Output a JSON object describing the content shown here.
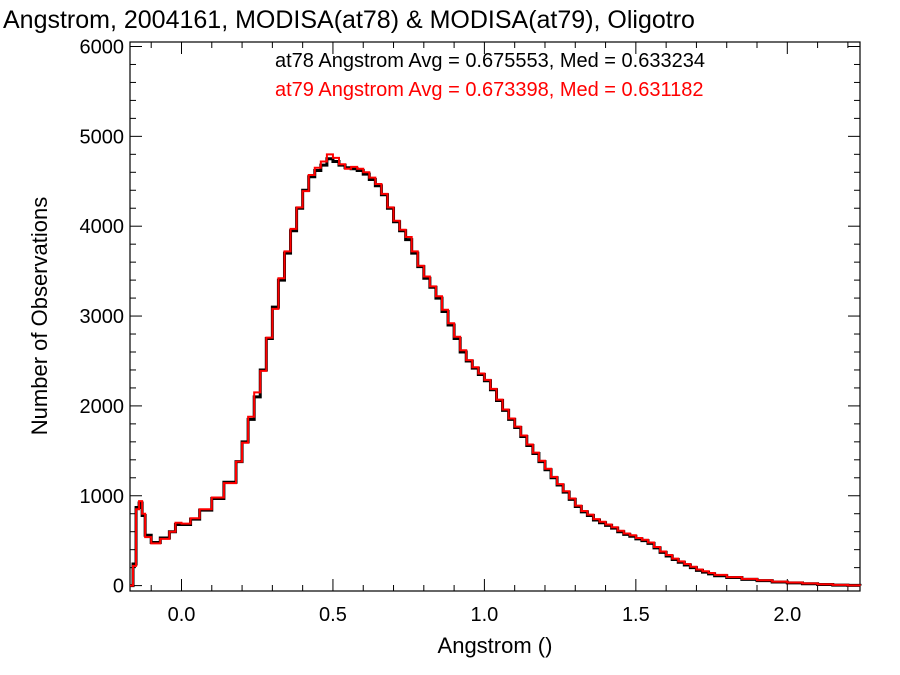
{
  "chart_data": {
    "type": "line",
    "title": "Angstrom, 2004161, MODISA(at78) & MODISA(at79), Oligotro",
    "xlabel": "Angstrom ()",
    "ylabel": "Number of Observations",
    "xlim": [
      -0.17,
      2.24
    ],
    "ylim": [
      -60,
      6050
    ],
    "x_ticks": [
      0.0,
      0.5,
      1.0,
      1.5,
      2.0
    ],
    "x_tick_labels": [
      "0.0",
      "0.5",
      "1.0",
      "1.5",
      "2.0"
    ],
    "y_ticks": [
      0,
      1000,
      2000,
      3000,
      4000,
      5000,
      6000
    ],
    "y_tick_labels": [
      "0",
      "1000",
      "2000",
      "3000",
      "4000",
      "5000",
      "6000"
    ],
    "grid": false,
    "legend_position": "top-right",
    "annotations": [
      {
        "text": "at78 Angstrom Avg = 0.675553, Med = 0.633234",
        "color": "#000000"
      },
      {
        "text": "at79 Angstrom Avg = 0.673398, Med = 0.631182",
        "color": "#ff0000"
      }
    ],
    "series": [
      {
        "color": "#000000",
        "points": [
          [
            -0.17,
            0
          ],
          [
            -0.16,
            240
          ],
          [
            -0.15,
            870
          ],
          [
            -0.14,
            920
          ],
          [
            -0.13,
            780
          ],
          [
            -0.12,
            560
          ],
          [
            -0.1,
            480
          ],
          [
            -0.07,
            530
          ],
          [
            -0.04,
            600
          ],
          [
            -0.02,
            680
          ],
          [
            0.0,
            680
          ],
          [
            0.03,
            740
          ],
          [
            0.06,
            840
          ],
          [
            0.1,
            970
          ],
          [
            0.14,
            1150
          ],
          [
            0.18,
            1380
          ],
          [
            0.2,
            1600
          ],
          [
            0.22,
            1850
          ],
          [
            0.24,
            2100
          ],
          [
            0.26,
            2400
          ],
          [
            0.28,
            2750
          ],
          [
            0.3,
            3100
          ],
          [
            0.32,
            3400
          ],
          [
            0.34,
            3700
          ],
          [
            0.36,
            3950
          ],
          [
            0.38,
            4200
          ],
          [
            0.4,
            4400
          ],
          [
            0.42,
            4550
          ],
          [
            0.44,
            4620
          ],
          [
            0.46,
            4680
          ],
          [
            0.48,
            4750
          ],
          [
            0.5,
            4720
          ],
          [
            0.52,
            4680
          ],
          [
            0.54,
            4650
          ],
          [
            0.56,
            4640
          ],
          [
            0.58,
            4620
          ],
          [
            0.6,
            4580
          ],
          [
            0.62,
            4520
          ],
          [
            0.64,
            4450
          ],
          [
            0.66,
            4350
          ],
          [
            0.68,
            4200
          ],
          [
            0.7,
            4050
          ],
          [
            0.72,
            3950
          ],
          [
            0.74,
            3850
          ],
          [
            0.76,
            3700
          ],
          [
            0.78,
            3550
          ],
          [
            0.8,
            3420
          ],
          [
            0.82,
            3320
          ],
          [
            0.84,
            3200
          ],
          [
            0.86,
            3050
          ],
          [
            0.88,
            2900
          ],
          [
            0.9,
            2750
          ],
          [
            0.92,
            2600
          ],
          [
            0.94,
            2500
          ],
          [
            0.96,
            2420
          ],
          [
            0.98,
            2350
          ],
          [
            1.0,
            2280
          ],
          [
            1.02,
            2180
          ],
          [
            1.04,
            2060
          ],
          [
            1.06,
            1950
          ],
          [
            1.08,
            1850
          ],
          [
            1.1,
            1760
          ],
          [
            1.12,
            1660
          ],
          [
            1.14,
            1560
          ],
          [
            1.16,
            1470
          ],
          [
            1.18,
            1380
          ],
          [
            1.2,
            1290
          ],
          [
            1.22,
            1200
          ],
          [
            1.24,
            1120
          ],
          [
            1.26,
            1040
          ],
          [
            1.28,
            960
          ],
          [
            1.3,
            880
          ],
          [
            1.32,
            820
          ],
          [
            1.34,
            780
          ],
          [
            1.36,
            730
          ],
          [
            1.38,
            700
          ],
          [
            1.4,
            670
          ],
          [
            1.42,
            640
          ],
          [
            1.44,
            600
          ],
          [
            1.46,
            570
          ],
          [
            1.48,
            550
          ],
          [
            1.5,
            520
          ],
          [
            1.52,
            500
          ],
          [
            1.54,
            470
          ],
          [
            1.56,
            420
          ],
          [
            1.58,
            370
          ],
          [
            1.6,
            330
          ],
          [
            1.62,
            290
          ],
          [
            1.64,
            260
          ],
          [
            1.66,
            230
          ],
          [
            1.68,
            200
          ],
          [
            1.7,
            170
          ],
          [
            1.72,
            150
          ],
          [
            1.74,
            130
          ],
          [
            1.76,
            110
          ],
          [
            1.8,
            90
          ],
          [
            1.85,
            70
          ],
          [
            1.9,
            55
          ],
          [
            1.95,
            40
          ],
          [
            2.0,
            30
          ],
          [
            2.05,
            20
          ],
          [
            2.1,
            12
          ],
          [
            2.15,
            6
          ],
          [
            2.2,
            2
          ],
          [
            2.24,
            0
          ]
        ]
      },
      {
        "color": "#ff0000",
        "points": [
          [
            -0.17,
            0
          ],
          [
            -0.16,
            220
          ],
          [
            -0.15,
            850
          ],
          [
            -0.14,
            940
          ],
          [
            -0.13,
            800
          ],
          [
            -0.12,
            540
          ],
          [
            -0.1,
            470
          ],
          [
            -0.07,
            520
          ],
          [
            -0.04,
            600
          ],
          [
            -0.02,
            700
          ],
          [
            0.0,
            690
          ],
          [
            0.03,
            750
          ],
          [
            0.06,
            850
          ],
          [
            0.1,
            980
          ],
          [
            0.14,
            1140
          ],
          [
            0.18,
            1380
          ],
          [
            0.2,
            1590
          ],
          [
            0.22,
            1880
          ],
          [
            0.24,
            2150
          ],
          [
            0.26,
            2390
          ],
          [
            0.28,
            2760
          ],
          [
            0.3,
            3080
          ],
          [
            0.32,
            3420
          ],
          [
            0.34,
            3720
          ],
          [
            0.36,
            3970
          ],
          [
            0.38,
            4210
          ],
          [
            0.4,
            4390
          ],
          [
            0.42,
            4570
          ],
          [
            0.44,
            4650
          ],
          [
            0.46,
            4720
          ],
          [
            0.48,
            4800
          ],
          [
            0.5,
            4760
          ],
          [
            0.52,
            4690
          ],
          [
            0.54,
            4640
          ],
          [
            0.56,
            4660
          ],
          [
            0.58,
            4640
          ],
          [
            0.6,
            4600
          ],
          [
            0.62,
            4540
          ],
          [
            0.64,
            4470
          ],
          [
            0.66,
            4360
          ],
          [
            0.68,
            4210
          ],
          [
            0.7,
            4060
          ],
          [
            0.72,
            3960
          ],
          [
            0.74,
            3880
          ],
          [
            0.76,
            3720
          ],
          [
            0.78,
            3560
          ],
          [
            0.8,
            3440
          ],
          [
            0.82,
            3330
          ],
          [
            0.84,
            3220
          ],
          [
            0.86,
            3070
          ],
          [
            0.88,
            2920
          ],
          [
            0.9,
            2770
          ],
          [
            0.92,
            2620
          ],
          [
            0.94,
            2510
          ],
          [
            0.96,
            2430
          ],
          [
            0.98,
            2360
          ],
          [
            1.0,
            2290
          ],
          [
            1.02,
            2190
          ],
          [
            1.04,
            2070
          ],
          [
            1.06,
            1960
          ],
          [
            1.08,
            1860
          ],
          [
            1.1,
            1770
          ],
          [
            1.12,
            1670
          ],
          [
            1.14,
            1570
          ],
          [
            1.16,
            1480
          ],
          [
            1.18,
            1390
          ],
          [
            1.2,
            1300
          ],
          [
            1.22,
            1210
          ],
          [
            1.24,
            1130
          ],
          [
            1.26,
            1050
          ],
          [
            1.28,
            970
          ],
          [
            1.3,
            890
          ],
          [
            1.32,
            830
          ],
          [
            1.34,
            790
          ],
          [
            1.36,
            740
          ],
          [
            1.38,
            710
          ],
          [
            1.4,
            680
          ],
          [
            1.42,
            650
          ],
          [
            1.44,
            610
          ],
          [
            1.46,
            580
          ],
          [
            1.48,
            560
          ],
          [
            1.5,
            530
          ],
          [
            1.52,
            510
          ],
          [
            1.54,
            480
          ],
          [
            1.56,
            430
          ],
          [
            1.58,
            380
          ],
          [
            1.6,
            340
          ],
          [
            1.62,
            300
          ],
          [
            1.64,
            270
          ],
          [
            1.66,
            240
          ],
          [
            1.68,
            210
          ],
          [
            1.7,
            180
          ],
          [
            1.72,
            160
          ],
          [
            1.74,
            140
          ],
          [
            1.76,
            120
          ],
          [
            1.8,
            95
          ],
          [
            1.85,
            75
          ],
          [
            1.9,
            60
          ],
          [
            1.95,
            45
          ],
          [
            2.0,
            35
          ],
          [
            2.05,
            25
          ],
          [
            2.1,
            15
          ],
          [
            2.15,
            8
          ],
          [
            2.2,
            3
          ],
          [
            2.24,
            0
          ]
        ]
      }
    ]
  }
}
